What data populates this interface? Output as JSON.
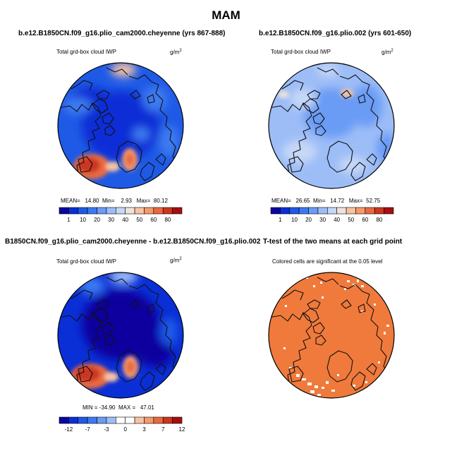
{
  "main_title": "MAM",
  "chart_data": [
    {
      "type": "heatmap",
      "title": "b.e12.B1850CN.f09_g16.plio_cam2000.cheyenne (yrs 867-888)",
      "subtitle": "Total grd-box cloud IWP",
      "units": "g/m",
      "units_exp": "2",
      "stats": {
        "mean_label": "MEAN=",
        "mean": "14.80",
        "min_label": "Min=",
        "min": "2.93",
        "max_label": "Max=",
        "max": "80.12"
      },
      "colorbar": {
        "colors": [
          "#08069e",
          "#0a2fd6",
          "#1f5ae6",
          "#3d7af0",
          "#6b9bf5",
          "#9dbdf7",
          "#c6d8f7",
          "#efe3db",
          "#f7c3a3",
          "#f59a6c",
          "#e86a3f",
          "#cc3520",
          "#a50f0f"
        ],
        "tick_labels": [
          "1",
          "10",
          "20",
          "30",
          "40",
          "50",
          "60",
          "80"
        ]
      }
    },
    {
      "type": "heatmap",
      "title": "b.e12.B1850CN.f09_g16.plio.002 (yrs 601-650)",
      "subtitle": "Total grd-box cloud IWP",
      "units": "g/m",
      "units_exp": "2",
      "stats": {
        "mean_label": "MEAN=",
        "mean": "26.65",
        "min_label": "Min=",
        "min": "14.72",
        "max_label": "Max=",
        "max": "52.75"
      },
      "colorbar": {
        "colors": [
          "#08069e",
          "#0a2fd6",
          "#1f5ae6",
          "#3d7af0",
          "#6b9bf5",
          "#9dbdf7",
          "#c6d8f7",
          "#efe3db",
          "#f7c3a3",
          "#f59a6c",
          "#e86a3f",
          "#cc3520",
          "#a50f0f"
        ],
        "tick_labels": [
          "1",
          "10",
          "20",
          "30",
          "40",
          "50",
          "60",
          "80"
        ]
      }
    },
    {
      "type": "heatmap",
      "title": "B1850CN.f09_g16.plio_cam2000.cheyenne - b.e12.B1850CN.f09_g16.plio.002",
      "subtitle": "Total grd-box cloud IWP",
      "units": "g/m",
      "units_exp": "2",
      "stats": {
        "min_label": "MIN =",
        "min": "-34.90",
        "max_label": "MAX =",
        "max": "47.01"
      },
      "colorbar": {
        "colors": [
          "#08069e",
          "#0a2fd6",
          "#1f5ae6",
          "#3d7af0",
          "#6b9bf5",
          "#9dbdf7",
          "#ffffff",
          "#ffffff",
          "#f7c3a3",
          "#f59a6c",
          "#e86a3f",
          "#cc3520",
          "#a50f0f"
        ],
        "tick_labels": [
          "-12",
          "-7",
          "-3",
          "0",
          "3",
          "7",
          "12"
        ]
      }
    },
    {
      "type": "heatmap",
      "title": "T-test of the two means at each grid point",
      "subtitle": "Colored cells are significant at the 0.05 level",
      "fill_color": "#f07a3c"
    }
  ]
}
